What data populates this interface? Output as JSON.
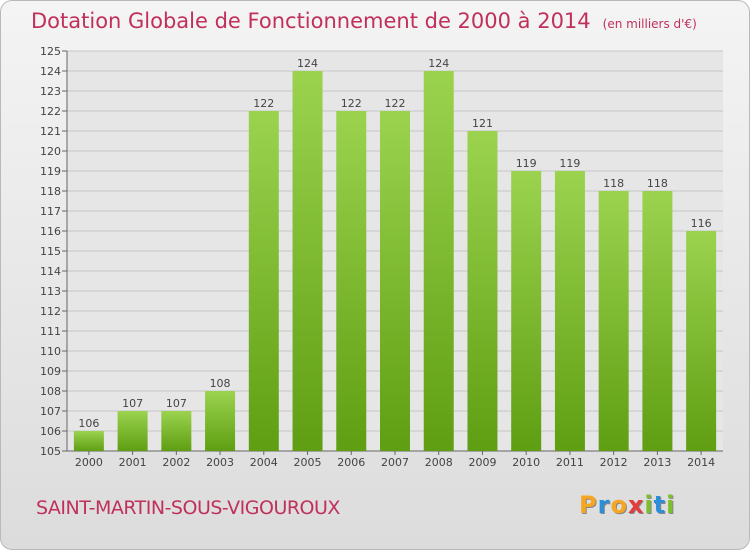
{
  "header": {
    "title": "Dotation Globale de Fonctionnement de 2000 à 2014",
    "subtitle": "(en milliers d'€)"
  },
  "footer": {
    "commune": "SAINT-MARTIN-SOUS-VIGOUROUX",
    "logo": {
      "letters": [
        "P",
        "r",
        "o",
        "x",
        "i",
        "t",
        "i"
      ],
      "colors": [
        "#f5a623",
        "#2a8fd6",
        "#f5a623",
        "#e23b3b",
        "#7cbf2c",
        "#2a8fd6",
        "#7cbf2c"
      ]
    }
  },
  "chart_data": {
    "type": "bar",
    "categories": [
      "2000",
      "2001",
      "2002",
      "2003",
      "2004",
      "2005",
      "2006",
      "2007",
      "2008",
      "2009",
      "2010",
      "2011",
      "2012",
      "2013",
      "2014"
    ],
    "values": [
      106,
      107,
      107,
      108,
      122,
      124,
      122,
      122,
      124,
      121,
      119,
      119,
      118,
      118,
      116
    ],
    "ylim": [
      105,
      125
    ],
    "yticks": [
      105,
      106,
      107,
      108,
      109,
      110,
      111,
      112,
      113,
      114,
      115,
      116,
      117,
      118,
      119,
      120,
      121,
      122,
      123,
      124,
      125
    ],
    "grid": true,
    "bar_colors": {
      "top": "#9bd34f",
      "bottom": "#5f9e12"
    }
  }
}
